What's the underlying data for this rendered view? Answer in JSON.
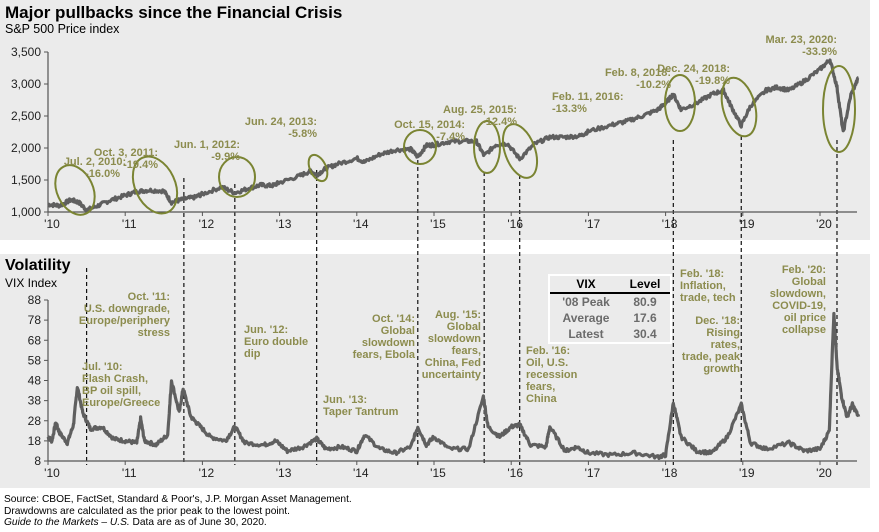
{
  "header": {
    "title": "Major pullbacks since the Financial Crisis",
    "subtitle": "S&P 500 Price index"
  },
  "volatility": {
    "title": "Volatility",
    "subtitle": "VIX Index"
  },
  "vix_table": {
    "headers": [
      "VIX",
      "Level"
    ],
    "rows": [
      {
        "label": "'08 Peak",
        "value": "80.9"
      },
      {
        "label": "Average",
        "value": "17.6"
      },
      {
        "label": "Latest",
        "value": "30.4"
      }
    ]
  },
  "footer": {
    "line1": "Source: CBOE, FactSet, Standard & Poor's, J.P. Morgan Asset Management.",
    "line2": "Drawdowns are calculated as the prior peak to the lowest point.",
    "line3_italic": "Guide to the Markets – U.S.",
    "line3_rest": " Data are as of June 30, 2020."
  },
  "colors": {
    "series": "#5f5f5f",
    "annotation": "#8c8c4e",
    "ellipse": "#7a8432",
    "panel_bg": "#ebebeb"
  },
  "chart_data": [
    {
      "type": "line",
      "title": "Major pullbacks since the Financial Crisis",
      "subtitle": "S&P 500 Price index",
      "xlabel": "",
      "ylabel": "",
      "x_ticks": [
        "'10",
        "'11",
        "'12",
        "'13",
        "'14",
        "'15",
        "'16",
        "'17",
        "'18",
        "'19",
        "'20"
      ],
      "xlim": [
        2010.0,
        2020.5
      ],
      "y_ticks": [
        "1,000",
        "1,500",
        "2,000",
        "2,500",
        "3,000",
        "3,500"
      ],
      "y_tick_values": [
        1000,
        1500,
        2000,
        2500,
        3000,
        3500
      ],
      "ylim": [
        1000,
        3500
      ],
      "grid": false,
      "series": [
        {
          "name": "S&P 500",
          "x": [
            2010.0,
            2010.15,
            2010.3,
            2010.4,
            2010.5,
            2010.65,
            2010.8,
            2011.0,
            2011.15,
            2011.3,
            2011.5,
            2011.6,
            2011.75,
            2011.9,
            2012.0,
            2012.25,
            2012.42,
            2012.6,
            2012.75,
            2012.9,
            2013.0,
            2013.25,
            2013.4,
            2013.48,
            2013.6,
            2013.75,
            2014.0,
            2014.1,
            2014.3,
            2014.5,
            2014.7,
            2014.79,
            2014.9,
            2015.0,
            2015.2,
            2015.4,
            2015.55,
            2015.65,
            2015.8,
            2015.95,
            2016.11,
            2016.3,
            2016.5,
            2016.7,
            2016.9,
            2017.0,
            2017.3,
            2017.5,
            2017.7,
            2017.9,
            2018.0,
            2018.1,
            2018.2,
            2018.4,
            2018.6,
            2018.75,
            2018.85,
            2018.98,
            2019.1,
            2019.3,
            2019.45,
            2019.6,
            2019.8,
            2020.0,
            2020.13,
            2020.22,
            2020.3,
            2020.4,
            2020.5
          ],
          "y": [
            1120,
            1100,
            1190,
            1150,
            1030,
            1100,
            1180,
            1260,
            1320,
            1340,
            1330,
            1150,
            1200,
            1230,
            1280,
            1390,
            1300,
            1370,
            1420,
            1410,
            1460,
            1560,
            1640,
            1580,
            1680,
            1750,
            1840,
            1780,
            1900,
            1970,
            1980,
            1860,
            2040,
            2050,
            2100,
            2110,
            2100,
            1880,
            2050,
            2070,
            1830,
            2060,
            2170,
            2170,
            2190,
            2260,
            2360,
            2420,
            2500,
            2600,
            2700,
            2840,
            2600,
            2700,
            2840,
            2900,
            2650,
            2350,
            2660,
            2900,
            2950,
            2900,
            3050,
            3230,
            3380,
            2950,
            2240,
            2830,
            3100
          ]
        }
      ],
      "annotations": [
        {
          "date": "Jul. 2, 2010:",
          "drawdown": "-16.0%"
        },
        {
          "date": "Oct. 3, 2011:",
          "drawdown": "-19.4%"
        },
        {
          "date": "Jun. 1, 2012:",
          "drawdown": "-9.9%"
        },
        {
          "date": "Jun. 24, 2013:",
          "drawdown": "-5.8%"
        },
        {
          "date": "Oct. 15, 2014:",
          "drawdown": "-7.4%"
        },
        {
          "date": "Aug. 25, 2015:",
          "drawdown": "-12.4%"
        },
        {
          "date": "Feb. 11, 2016:",
          "drawdown": "-13.3%"
        },
        {
          "date": "Feb. 8, 2018:",
          "drawdown": "-10.2%"
        },
        {
          "date": "Dec. 24, 2018:",
          "drawdown": "-19.8%"
        },
        {
          "date": "Mar. 23, 2020:",
          "drawdown": "-33.9%"
        }
      ]
    },
    {
      "type": "line",
      "title": "Volatility",
      "subtitle": "VIX Index",
      "x_ticks": [
        "'10",
        "'11",
        "'12",
        "'13",
        "'14",
        "'15",
        "'16",
        "'17",
        "'18",
        "'19",
        "'20"
      ],
      "xlim": [
        2010.0,
        2020.5
      ],
      "y_ticks": [
        "8",
        "18",
        "28",
        "38",
        "48",
        "58",
        "68",
        "78",
        "88"
      ],
      "y_tick_values": [
        8,
        18,
        28,
        38,
        48,
        58,
        68,
        78,
        88
      ],
      "ylim": [
        8,
        88
      ],
      "grid": false,
      "series": [
        {
          "name": "VIX",
          "x": [
            2010.0,
            2010.05,
            2010.1,
            2010.15,
            2010.25,
            2010.33,
            2010.38,
            2010.45,
            2010.55,
            2010.7,
            2010.85,
            2011.0,
            2011.15,
            2011.2,
            2011.25,
            2011.4,
            2011.55,
            2011.6,
            2011.7,
            2011.75,
            2011.85,
            2011.95,
            2012.1,
            2012.3,
            2012.42,
            2012.55,
            2012.8,
            2012.95,
            2013.1,
            2013.3,
            2013.48,
            2013.6,
            2013.8,
            2014.0,
            2014.1,
            2014.3,
            2014.5,
            2014.7,
            2014.79,
            2014.9,
            2015.0,
            2015.2,
            2015.45,
            2015.64,
            2015.7,
            2015.85,
            2016.0,
            2016.11,
            2016.25,
            2016.45,
            2016.5,
            2016.7,
            2016.85,
            2017.0,
            2017.3,
            2017.6,
            2017.9,
            2018.0,
            2018.1,
            2018.2,
            2018.4,
            2018.6,
            2018.8,
            2018.98,
            2019.1,
            2019.3,
            2019.6,
            2019.8,
            2020.0,
            2020.12,
            2020.18,
            2020.22,
            2020.28,
            2020.35,
            2020.42,
            2020.5
          ],
          "y": [
            20,
            18,
            27,
            22,
            17,
            26,
            45,
            32,
            24,
            25,
            19,
            18,
            17,
            29,
            18,
            16,
            21,
            48,
            32,
            44,
            30,
            26,
            20,
            18,
            25,
            17,
            16,
            18,
            13,
            15,
            19,
            14,
            15,
            13,
            21,
            14,
            12,
            15,
            25,
            16,
            20,
            14,
            14,
            40,
            25,
            20,
            25,
            26,
            16,
            15,
            25,
            13,
            15,
            12,
            11,
            12,
            10,
            11,
            37,
            20,
            13,
            12,
            20,
            36,
            17,
            14,
            17,
            13,
            14,
            23,
            82,
            55,
            40,
            30,
            36,
            30
          ]
        }
      ],
      "annotations": [
        {
          "label": "Jul. '10:",
          "text": [
            "Flash Crash,",
            "BP oil spill,",
            "Europe/Greece"
          ]
        },
        {
          "label": "Oct. '11:",
          "text": [
            "U.S. downgrade,",
            "Europe/periphery",
            "stress"
          ]
        },
        {
          "label": "Jun. '12:",
          "text": [
            "Euro double",
            "dip"
          ]
        },
        {
          "label": "Jun. '13:",
          "text": [
            "Taper Tantrum"
          ]
        },
        {
          "label": "Oct. '14:",
          "text": [
            "Global",
            "slowdown",
            "fears, Ebola"
          ]
        },
        {
          "label": "Aug. '15:",
          "text": [
            "Global",
            "slowdown",
            "fears,",
            "China, Fed",
            "uncertainty"
          ]
        },
        {
          "label": "Feb. '16:",
          "text": [
            "Oil, U.S.",
            "recession",
            "fears,",
            "China"
          ]
        },
        {
          "label": "Feb. '18:",
          "text": [
            "Inflation,",
            "trade, tech"
          ]
        },
        {
          "label": "Dec. '18:",
          "text": [
            "Rising",
            "rates,",
            "trade, peak",
            "growth"
          ]
        },
        {
          "label": "Feb. '20:",
          "text": [
            "Global",
            "slowdown,",
            "COVID-19,",
            "oil price",
            "collapse"
          ]
        }
      ]
    }
  ]
}
